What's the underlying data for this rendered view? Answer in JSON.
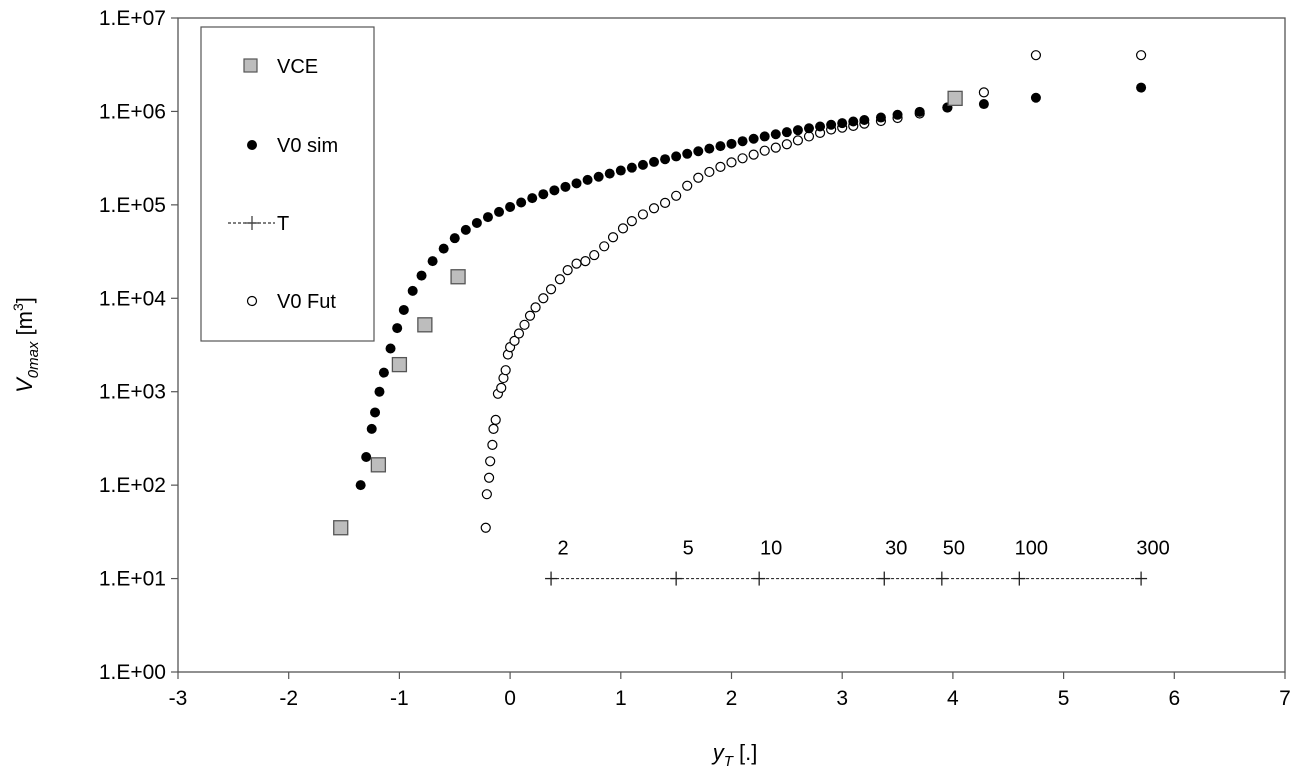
{
  "chart_data": {
    "type": "scatter",
    "title": "",
    "xlabel": {
      "main": "y",
      "sub": "T",
      "unit": " [.]"
    },
    "ylabel": {
      "main": "V",
      "sub": "0max",
      "unit": " [m",
      "sup": "3",
      "close": "]"
    },
    "xlim": [
      -3,
      7
    ],
    "ylim": [
      1,
      10000000
    ],
    "yscale": "log",
    "grid": false,
    "legend_position": "top-left",
    "x_ticks": [
      "-3",
      "-2",
      "-1",
      "0",
      "1",
      "2",
      "3",
      "4",
      "5",
      "6",
      "7"
    ],
    "y_ticks": [
      "1.E+00",
      "1.E+01",
      "1.E+02",
      "1.E+03",
      "1.E+04",
      "1.E+05",
      "1.E+06",
      "1.E+07"
    ],
    "series": [
      {
        "name": "VCE",
        "marker": "square",
        "color": "#bdbdbd",
        "points": [
          [
            -1.53,
            35
          ],
          [
            -1.19,
            165
          ],
          [
            -1.0,
            1950
          ],
          [
            -0.77,
            5200
          ],
          [
            -0.47,
            17000
          ],
          [
            4.02,
            1380000
          ]
        ]
      },
      {
        "name": "V0 sim",
        "marker": "filled-circle",
        "color": "#000000",
        "points": [
          [
            -1.35,
            100
          ],
          [
            -1.3,
            200
          ],
          [
            -1.25,
            400
          ],
          [
            -1.22,
            600
          ],
          [
            -1.18,
            1000
          ],
          [
            -1.14,
            1600
          ],
          [
            -1.08,
            2900
          ],
          [
            -1.02,
            4800
          ],
          [
            -0.96,
            7500
          ],
          [
            -0.88,
            12000
          ],
          [
            -0.8,
            17500
          ],
          [
            -0.7,
            25000
          ],
          [
            -0.6,
            34000
          ],
          [
            -0.5,
            44000
          ],
          [
            -0.4,
            54000
          ],
          [
            -0.3,
            64000
          ],
          [
            -0.2,
            74000
          ],
          [
            -0.1,
            84000
          ],
          [
            0.0,
            95000
          ],
          [
            0.1,
            106000
          ],
          [
            0.2,
            118000
          ],
          [
            0.3,
            130000
          ],
          [
            0.4,
            143000
          ],
          [
            0.5,
            156000
          ],
          [
            0.6,
            170000
          ],
          [
            0.7,
            185000
          ],
          [
            0.8,
            200000
          ],
          [
            0.9,
            216000
          ],
          [
            1.0,
            233000
          ],
          [
            1.1,
            250000
          ],
          [
            1.2,
            268000
          ],
          [
            1.3,
            288000
          ],
          [
            1.4,
            308000
          ],
          [
            1.5,
            330000
          ],
          [
            1.6,
            352000
          ],
          [
            1.7,
            375000
          ],
          [
            1.8,
            400000
          ],
          [
            1.9,
            425000
          ],
          [
            2.0,
            450000
          ],
          [
            2.1,
            480000
          ],
          [
            2.2,
            510000
          ],
          [
            2.3,
            540000
          ],
          [
            2.4,
            570000
          ],
          [
            2.5,
            600000
          ],
          [
            2.6,
            630000
          ],
          [
            2.7,
            660000
          ],
          [
            2.8,
            690000
          ],
          [
            2.9,
            720000
          ],
          [
            3.0,
            750000
          ],
          [
            3.1,
            780000
          ],
          [
            3.2,
            810000
          ],
          [
            3.35,
            860000
          ],
          [
            3.5,
            920000
          ],
          [
            3.7,
            990000
          ],
          [
            3.95,
            1100000
          ],
          [
            4.28,
            1200000
          ],
          [
            4.75,
            1400000
          ],
          [
            5.7,
            1800000
          ]
        ]
      },
      {
        "name": "T",
        "marker": "plus-line",
        "color": "#000000",
        "points": [
          [
            0.37,
            10,
            "2"
          ],
          [
            1.5,
            10,
            "5"
          ],
          [
            2.25,
            10,
            "10"
          ],
          [
            3.38,
            10,
            "30"
          ],
          [
            3.9,
            10,
            "50"
          ],
          [
            4.6,
            10,
            "100"
          ],
          [
            5.7,
            10,
            "300"
          ]
        ]
      },
      {
        "name": "V0 Fut",
        "marker": "open-circle",
        "color": "#000000",
        "points": [
          [
            -0.22,
            35
          ],
          [
            -0.21,
            80
          ],
          [
            -0.19,
            120
          ],
          [
            -0.18,
            180
          ],
          [
            -0.16,
            270
          ],
          [
            -0.15,
            400
          ],
          [
            -0.13,
            500
          ],
          [
            -0.11,
            950
          ],
          [
            -0.08,
            1100
          ],
          [
            -0.06,
            1400
          ],
          [
            -0.04,
            1700
          ],
          [
            -0.02,
            2500
          ],
          [
            0.0,
            3000
          ],
          [
            0.04,
            3500
          ],
          [
            0.08,
            4200
          ],
          [
            0.13,
            5200
          ],
          [
            0.18,
            6500
          ],
          [
            0.23,
            8000
          ],
          [
            0.3,
            10000
          ],
          [
            0.37,
            12500
          ],
          [
            0.45,
            16000
          ],
          [
            0.52,
            20000
          ],
          [
            0.6,
            23500
          ],
          [
            0.68,
            25000
          ],
          [
            0.76,
            29000
          ],
          [
            0.85,
            36000
          ],
          [
            0.93,
            45000
          ],
          [
            1.02,
            56000
          ],
          [
            1.1,
            67000
          ],
          [
            1.2,
            79000
          ],
          [
            1.3,
            92000
          ],
          [
            1.4,
            105000
          ],
          [
            1.5,
            125000
          ],
          [
            1.6,
            160000
          ],
          [
            1.7,
            195000
          ],
          [
            1.8,
            225000
          ],
          [
            1.9,
            255000
          ],
          [
            2.0,
            285000
          ],
          [
            2.1,
            315000
          ],
          [
            2.2,
            345000
          ],
          [
            2.3,
            380000
          ],
          [
            2.4,
            410000
          ],
          [
            2.5,
            445000
          ],
          [
            2.6,
            490000
          ],
          [
            2.7,
            540000
          ],
          [
            2.8,
            590000
          ],
          [
            2.9,
            640000
          ],
          [
            3.0,
            670000
          ],
          [
            3.1,
            700000
          ],
          [
            3.2,
            740000
          ],
          [
            3.35,
            790000
          ],
          [
            3.5,
            850000
          ],
          [
            3.7,
            950000
          ],
          [
            3.95,
            1100000
          ],
          [
            4.28,
            1600000
          ],
          [
            4.75,
            4000000
          ],
          [
            5.7,
            4000000
          ]
        ]
      }
    ]
  }
}
